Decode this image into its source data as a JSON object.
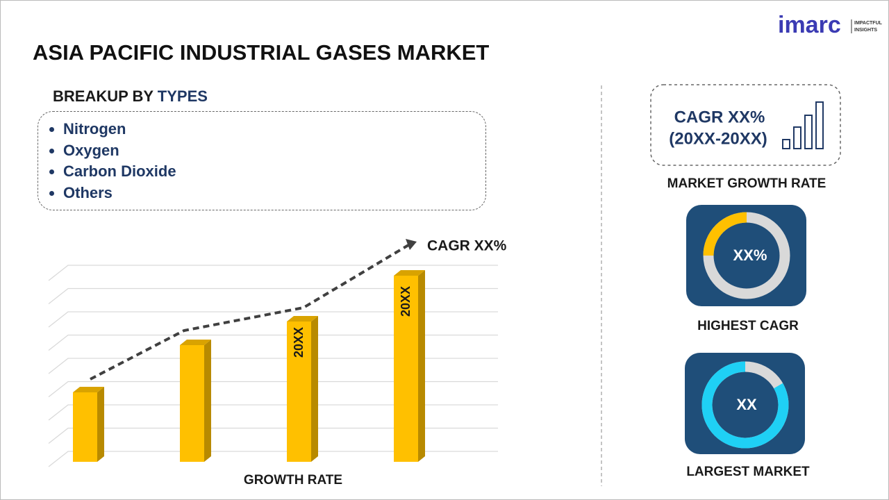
{
  "logo": {
    "brand": "imarc",
    "tagline": [
      "IMPACTFUL",
      "INSIGHTS"
    ]
  },
  "title": "ASIA PACIFIC INDUSTRIAL GASES MARKET",
  "breakup": {
    "heading": "BREAKUP BY",
    "heading_highlight": "TYPES",
    "items": [
      "Nitrogen",
      "Oxygen",
      "Carbon Dioxide",
      "Others"
    ]
  },
  "growth_chart": {
    "bar_labels": [
      "20XX",
      "20XX"
    ],
    "trend_label": "CAGR XX%",
    "axis_label": "GROWTH RATE"
  },
  "cards": {
    "cagr": {
      "line1": "CAGR XX%",
      "line2": "(20XX-20XX)",
      "caption": "MARKET GROWTH RATE"
    },
    "highest": {
      "value": "XX%",
      "caption": "HIGHEST CAGR"
    },
    "largest": {
      "value": "XX",
      "caption": "LARGEST MARKET"
    }
  }
}
